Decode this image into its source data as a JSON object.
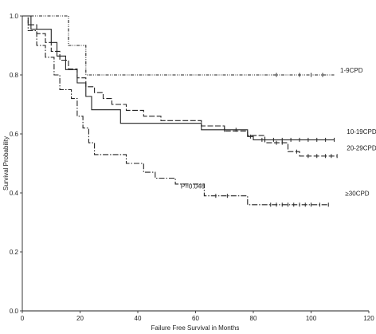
{
  "chart_data": {
    "type": "line",
    "step": true,
    "title": "",
    "xlabel": "Failure Free Survival in Months",
    "ylabel": "Survival Probability",
    "xlim": [
      0,
      120
    ],
    "ylim": [
      0.0,
      1.0
    ],
    "x_ticks": [
      0,
      20,
      40,
      60,
      80,
      100,
      120
    ],
    "x_tick_labels": [
      "0",
      "20",
      "40",
      "60",
      "80",
      "100",
      "120"
    ],
    "y_ticks": [
      0.0,
      0.2,
      0.4,
      0.6,
      0.8,
      1.0
    ],
    "y_tick_labels": [
      "0.0",
      "0.2",
      "0.4",
      "0.6",
      "0.8",
      "1.0"
    ],
    "grid": false,
    "legend": "inline labels at right end of each curve",
    "annotations": [
      {
        "text": "P=0.046",
        "x": 59,
        "y": 0.415
      }
    ],
    "series": [
      {
        "name": "1-9CPD",
        "style": "dash-dot-dot",
        "color": "#222222",
        "points": [
          [
            0,
            1.0
          ],
          [
            16,
            1.0
          ],
          [
            16,
            0.9
          ],
          [
            22,
            0.9
          ],
          [
            22,
            0.8
          ],
          [
            108,
            0.8
          ]
        ],
        "censored": [
          88,
          96,
          100,
          104
        ]
      },
      {
        "name": "10-19CPD",
        "style": "solid",
        "color": "#222222",
        "points": [
          [
            0,
            1.0
          ],
          [
            3,
            1.0
          ],
          [
            3,
            0.955
          ],
          [
            10,
            0.955
          ],
          [
            10,
            0.91
          ],
          [
            12,
            0.91
          ],
          [
            12,
            0.864
          ],
          [
            15,
            0.864
          ],
          [
            15,
            0.818
          ],
          [
            19,
            0.818
          ],
          [
            19,
            0.773
          ],
          [
            22,
            0.773
          ],
          [
            22,
            0.727
          ],
          [
            24,
            0.727
          ],
          [
            24,
            0.682
          ],
          [
            34,
            0.682
          ],
          [
            34,
            0.636
          ],
          [
            62,
            0.636
          ],
          [
            62,
            0.614
          ],
          [
            78,
            0.614
          ],
          [
            78,
            0.591
          ],
          [
            80,
            0.591
          ],
          [
            80,
            0.58
          ],
          [
            108,
            0.58
          ]
        ],
        "censored": [
          70,
          74,
          79,
          83,
          87,
          90,
          93,
          96,
          99,
          102,
          105,
          108
        ]
      },
      {
        "name": "20-29CPD",
        "style": "long-dash",
        "color": "#222222",
        "points": [
          [
            0,
            1.0
          ],
          [
            2,
            1.0
          ],
          [
            2,
            0.97
          ],
          [
            5,
            0.97
          ],
          [
            5,
            0.94
          ],
          [
            8,
            0.94
          ],
          [
            8,
            0.91
          ],
          [
            10,
            0.91
          ],
          [
            10,
            0.88
          ],
          [
            13,
            0.88
          ],
          [
            13,
            0.85
          ],
          [
            16,
            0.85
          ],
          [
            16,
            0.82
          ],
          [
            19,
            0.82
          ],
          [
            19,
            0.79
          ],
          [
            22,
            0.79
          ],
          [
            22,
            0.76
          ],
          [
            25,
            0.76
          ],
          [
            25,
            0.74
          ],
          [
            28,
            0.74
          ],
          [
            28,
            0.72
          ],
          [
            31,
            0.72
          ],
          [
            31,
            0.7
          ],
          [
            36,
            0.7
          ],
          [
            36,
            0.68
          ],
          [
            42,
            0.68
          ],
          [
            42,
            0.66
          ],
          [
            48,
            0.66
          ],
          [
            48,
            0.645
          ],
          [
            62,
            0.645
          ],
          [
            62,
            0.627
          ],
          [
            70,
            0.627
          ],
          [
            70,
            0.61
          ],
          [
            78,
            0.61
          ],
          [
            78,
            0.595
          ],
          [
            84,
            0.595
          ],
          [
            84,
            0.57
          ],
          [
            92,
            0.57
          ],
          [
            92,
            0.54
          ],
          [
            96,
            0.54
          ],
          [
            96,
            0.525
          ],
          [
            109,
            0.525
          ]
        ],
        "censored": [
          88,
          90,
          95,
          99,
          102,
          105,
          107,
          109
        ]
      },
      {
        "name": "≥30CPD",
        "style": "dash-dot",
        "color": "#222222",
        "points": [
          [
            0,
            1.0
          ],
          [
            2,
            1.0
          ],
          [
            2,
            0.95
          ],
          [
            5,
            0.95
          ],
          [
            5,
            0.9
          ],
          [
            8,
            0.9
          ],
          [
            8,
            0.86
          ],
          [
            11,
            0.86
          ],
          [
            11,
            0.8
          ],
          [
            13,
            0.8
          ],
          [
            13,
            0.75
          ],
          [
            17,
            0.75
          ],
          [
            17,
            0.72
          ],
          [
            19,
            0.72
          ],
          [
            19,
            0.66
          ],
          [
            21,
            0.66
          ],
          [
            21,
            0.62
          ],
          [
            23,
            0.62
          ],
          [
            23,
            0.57
          ],
          [
            25,
            0.57
          ],
          [
            25,
            0.53
          ],
          [
            36,
            0.53
          ],
          [
            36,
            0.5
          ],
          [
            42,
            0.5
          ],
          [
            42,
            0.47
          ],
          [
            46,
            0.47
          ],
          [
            46,
            0.45
          ],
          [
            53,
            0.45
          ],
          [
            53,
            0.43
          ],
          [
            63,
            0.43
          ],
          [
            63,
            0.39
          ],
          [
            78,
            0.39
          ],
          [
            78,
            0.36
          ],
          [
            106,
            0.36
          ]
        ],
        "censored": [
          67,
          71,
          86,
          88,
          90,
          92,
          94,
          96,
          98,
          100,
          103,
          106
        ]
      }
    ],
    "series_labels": [
      {
        "name": "1-9CPD",
        "x": 114,
        "y": 0.808
      },
      {
        "name": "10-19CPD",
        "x": 117.5,
        "y": 0.6
      },
      {
        "name": "20-29CPD",
        "x": 117.5,
        "y": 0.545
      },
      {
        "name": "≥30CPD",
        "x": 116,
        "y": 0.39
      }
    ]
  }
}
